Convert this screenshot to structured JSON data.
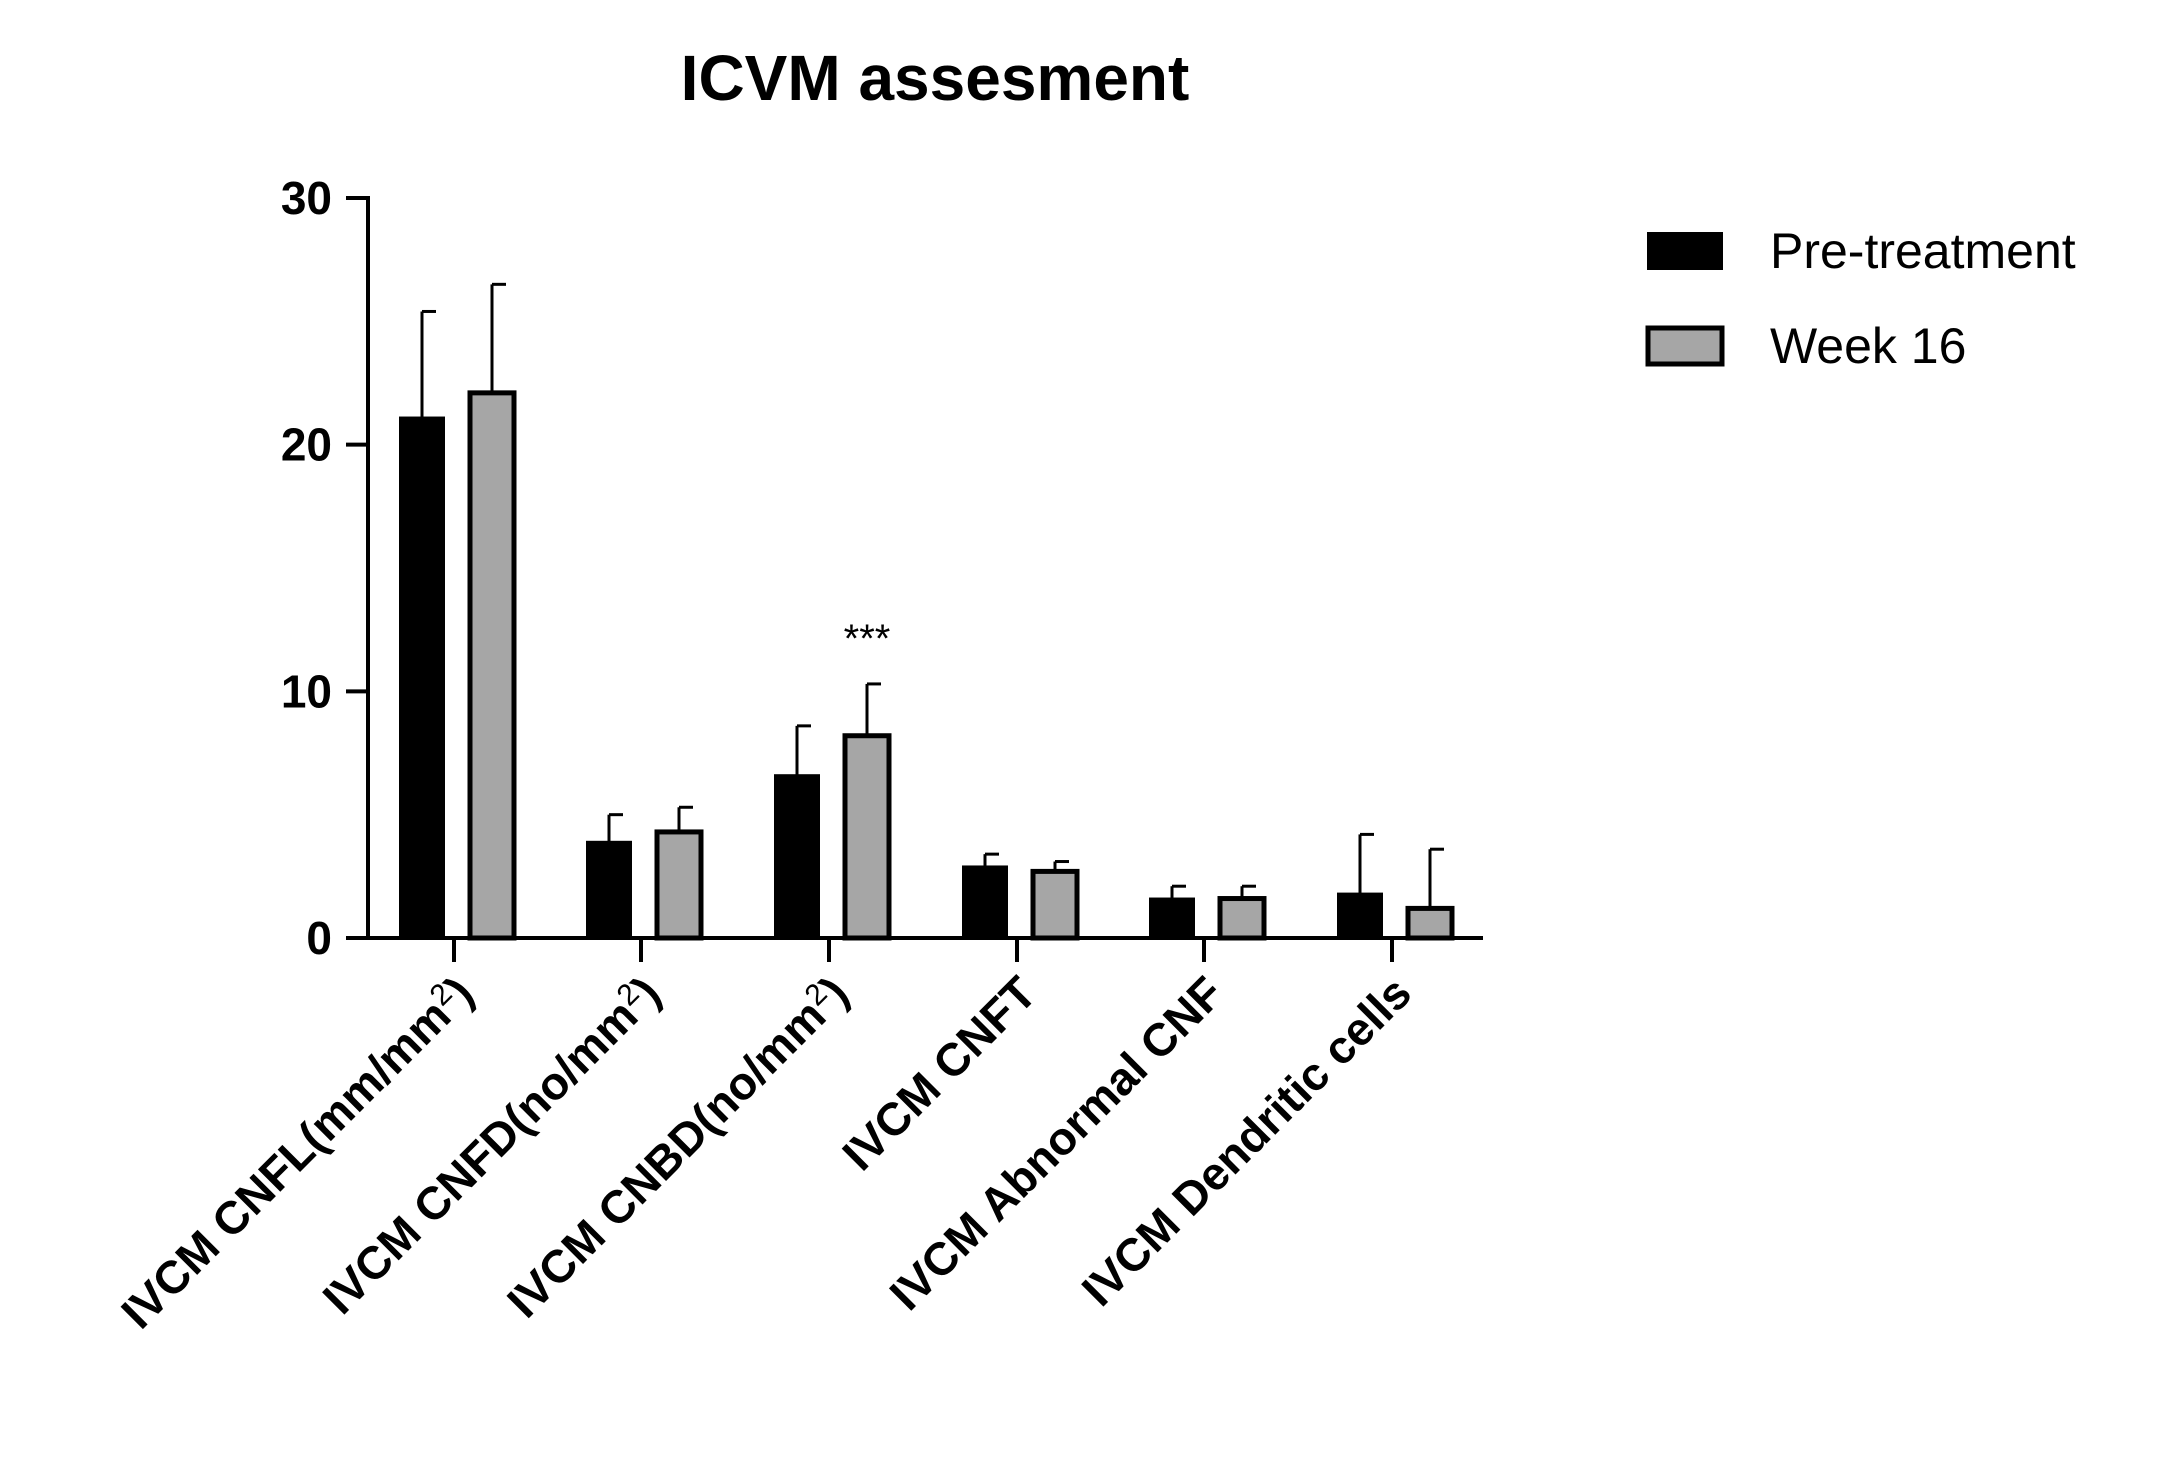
{
  "chart_data": {
    "type": "bar",
    "title": "ICVM assesment",
    "xlabel": "",
    "ylabel": "",
    "ylim": [
      0,
      30
    ],
    "yticks": [
      "0",
      "10",
      "20",
      "30"
    ],
    "grid": false,
    "legend_position": "top-right",
    "categories": [
      {
        "base": "IVCM CNFL(mm/mm",
        "sup": "2",
        "tail": ")"
      },
      {
        "base": "IVCM CNFD(no/mm",
        "sup": "2",
        "tail": ")"
      },
      {
        "base": "IVCM CNBD(no/mm",
        "sup": "2",
        "tail": ")"
      },
      {
        "base": "IVCM CNFT",
        "sup": "",
        "tail": ""
      },
      {
        "base": "IVCM Abnormal CNF",
        "sup": "",
        "tail": ""
      },
      {
        "base": "IVCM Dendritic cells",
        "sup": "",
        "tail": ""
      }
    ],
    "series": [
      {
        "name": "Pre-treatment",
        "color": "#000000",
        "values": [
          21.1,
          3.9,
          6.6,
          2.9,
          1.6,
          1.8
        ],
        "errors": [
          4.3,
          1.1,
          2.0,
          0.5,
          0.5,
          2.4
        ]
      },
      {
        "name": "Week 16",
        "color": "#a6a6a6",
        "values": [
          22.1,
          4.3,
          8.2,
          2.7,
          1.6,
          1.2
        ],
        "errors": [
          4.4,
          1.0,
          2.1,
          0.4,
          0.5,
          2.4
        ]
      }
    ],
    "annotations": [
      {
        "category_index": 2,
        "series_index": 1,
        "text": "***"
      }
    ]
  }
}
